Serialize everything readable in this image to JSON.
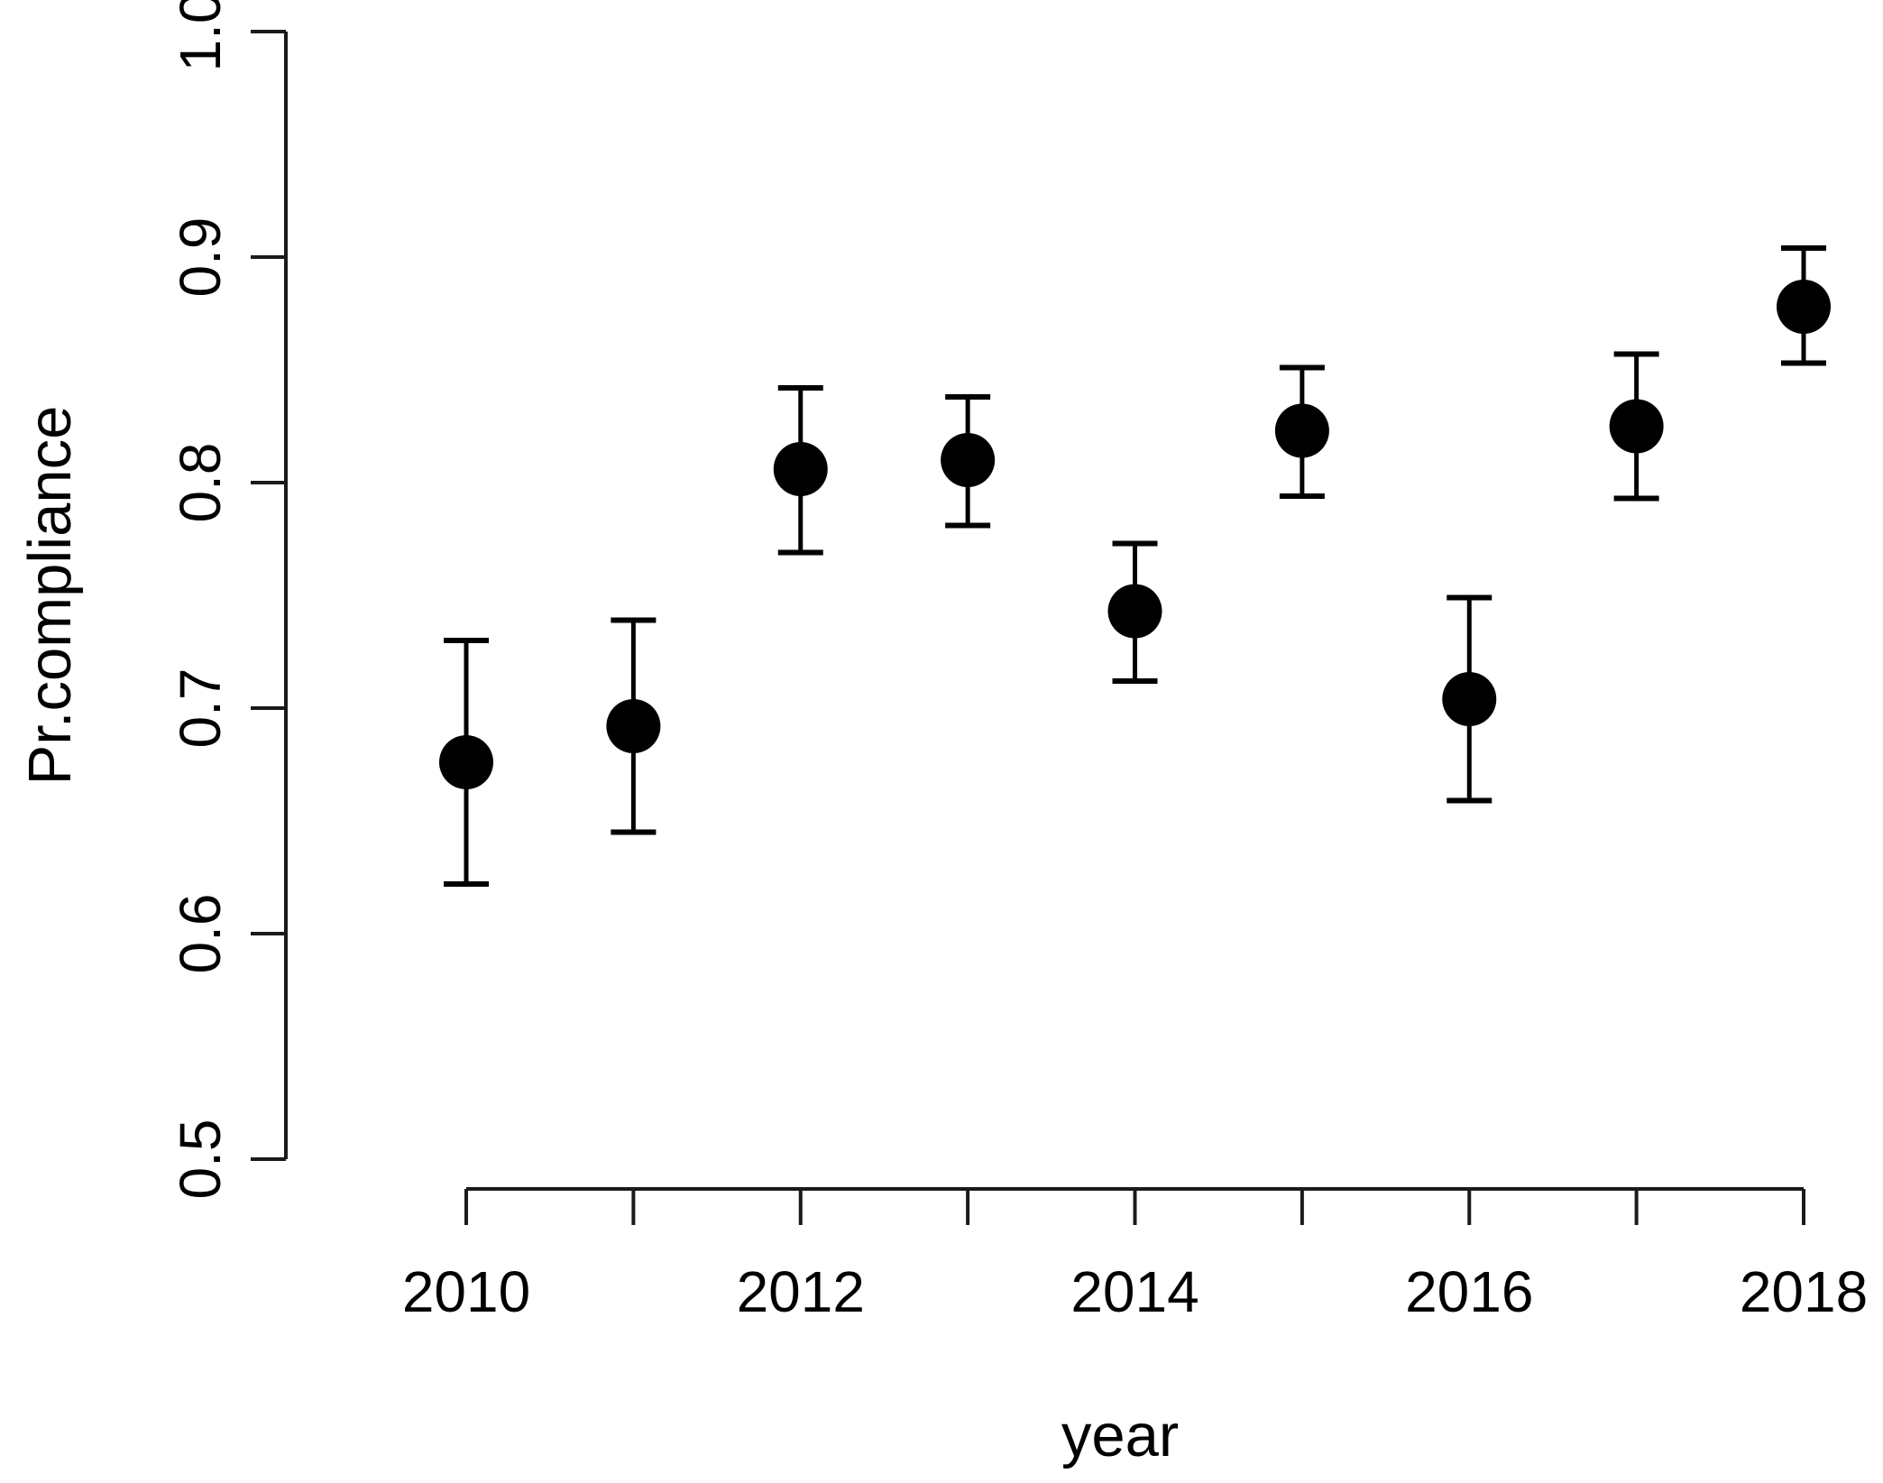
{
  "chart_data": {
    "type": "scatter",
    "title": "",
    "xlabel": "year",
    "ylabel": "Pr.compliance",
    "x": [
      2010,
      2011,
      2012,
      2013,
      2014,
      2015,
      2016,
      2017,
      2018
    ],
    "series": [
      {
        "name": "Pr.compliance",
        "values": [
          0.676,
          0.692,
          0.806,
          0.81,
          0.743,
          0.823,
          0.704,
          0.825,
          0.878
        ],
        "lower": [
          0.622,
          0.645,
          0.769,
          0.781,
          0.712,
          0.794,
          0.659,
          0.793,
          0.853
        ],
        "upper": [
          0.73,
          0.739,
          0.842,
          0.838,
          0.773,
          0.851,
          0.749,
          0.857,
          0.904
        ]
      }
    ],
    "error_bars": true,
    "marker": "filled-circle",
    "xlim": [
      2010,
      2018
    ],
    "ylim": [
      0.5,
      1.0
    ],
    "xticks": [
      2010,
      2011,
      2012,
      2013,
      2014,
      2015,
      2016,
      2017,
      2018
    ],
    "xtick_labels": [
      "2010",
      "",
      "2012",
      "",
      "2014",
      "",
      "2016",
      "",
      "2018"
    ],
    "yticks": [
      0.5,
      0.6,
      0.7,
      0.8,
      0.9,
      1.0
    ],
    "ytick_labels": [
      "0.5",
      "0.6",
      "0.7",
      "0.8",
      "0.9",
      "1.0"
    ],
    "grid": false,
    "legend": false,
    "point_color": "#000000",
    "axis_color": "#1a1a1a",
    "background": "#ffffff"
  }
}
